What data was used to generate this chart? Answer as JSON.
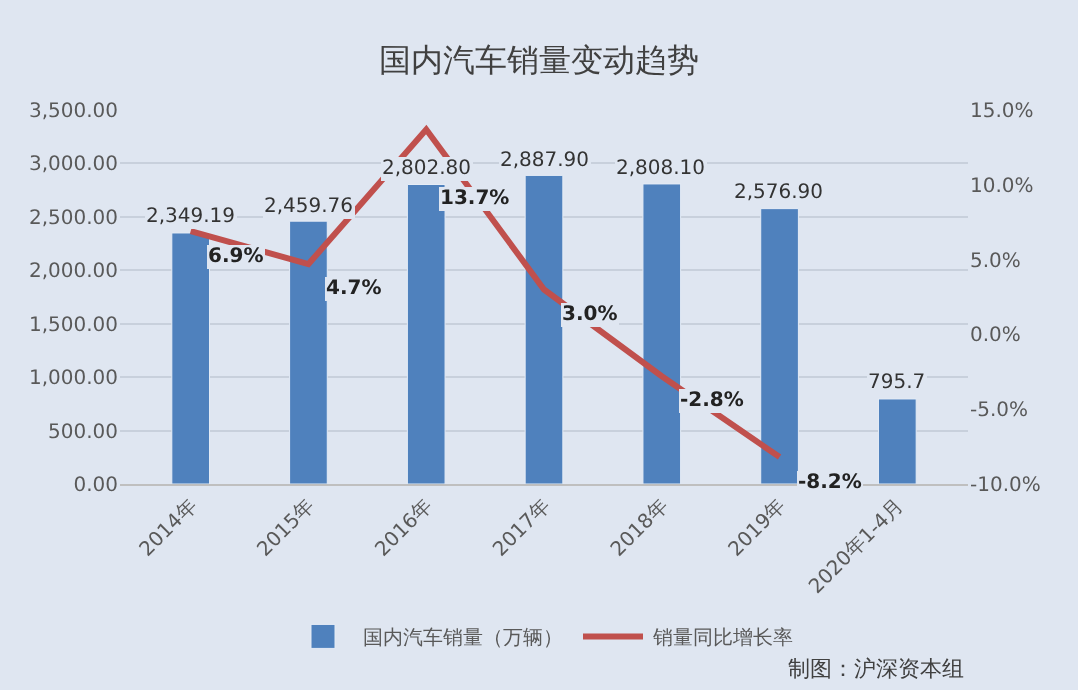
{
  "chart_data": {
    "type": "bar",
    "title": "国内汽车销量变动趋势",
    "categories": [
      "2014年",
      "2015年",
      "2016年",
      "2017年",
      "2018年",
      "2019年",
      "2020年1-4月"
    ],
    "series": [
      {
        "name": "国内汽车销量（万辆）",
        "color": "#4f81bd",
        "values": [
          2349.19,
          2459.76,
          2802.8,
          2887.9,
          2808.1,
          2576.9,
          795.7
        ],
        "value_labels": [
          "2,349.19",
          "2,459.76",
          "2,802.80",
          "2,887.90",
          "2,808.10",
          "2,576.90",
          "795.7"
        ]
      },
      {
        "name": "销量同比增长率",
        "type": "line",
        "axis": "y2",
        "color": "#c0504d",
        "values": [
          6.9,
          4.7,
          13.7,
          3.0,
          -2.8,
          -8.2,
          null
        ],
        "value_labels": [
          "6.9%",
          "4.7%",
          "13.7%",
          "3.0%",
          "-2.8%",
          "-8.2%",
          null
        ]
      }
    ],
    "ylim": [
      0,
      3500
    ],
    "yticks": [
      {
        "value": 0,
        "label": "0.00"
      },
      {
        "value": 500,
        "label": "500.00"
      },
      {
        "value": 1000,
        "label": "1,000.00"
      },
      {
        "value": 1500,
        "label": "1,500.00"
      },
      {
        "value": 2000,
        "label": "2,000.00"
      },
      {
        "value": 2500,
        "label": "2,500.00"
      },
      {
        "value": 3000,
        "label": "3,000.00"
      },
      {
        "value": 3500,
        "label": "3,500.00"
      }
    ],
    "y2lim": [
      -10,
      15
    ],
    "y2ticks": [
      {
        "value": -10,
        "label": "-10.0%"
      },
      {
        "value": -5,
        "label": "-5.0%"
      },
      {
        "value": 0,
        "label": "0.0%"
      },
      {
        "value": 5,
        "label": "5.0%"
      },
      {
        "value": 10,
        "label": "10.0%"
      },
      {
        "value": 15,
        "label": "15.0%"
      }
    ],
    "grid": "y",
    "legend": "bottom",
    "annotations": [
      "制图：沪深资本组"
    ]
  }
}
